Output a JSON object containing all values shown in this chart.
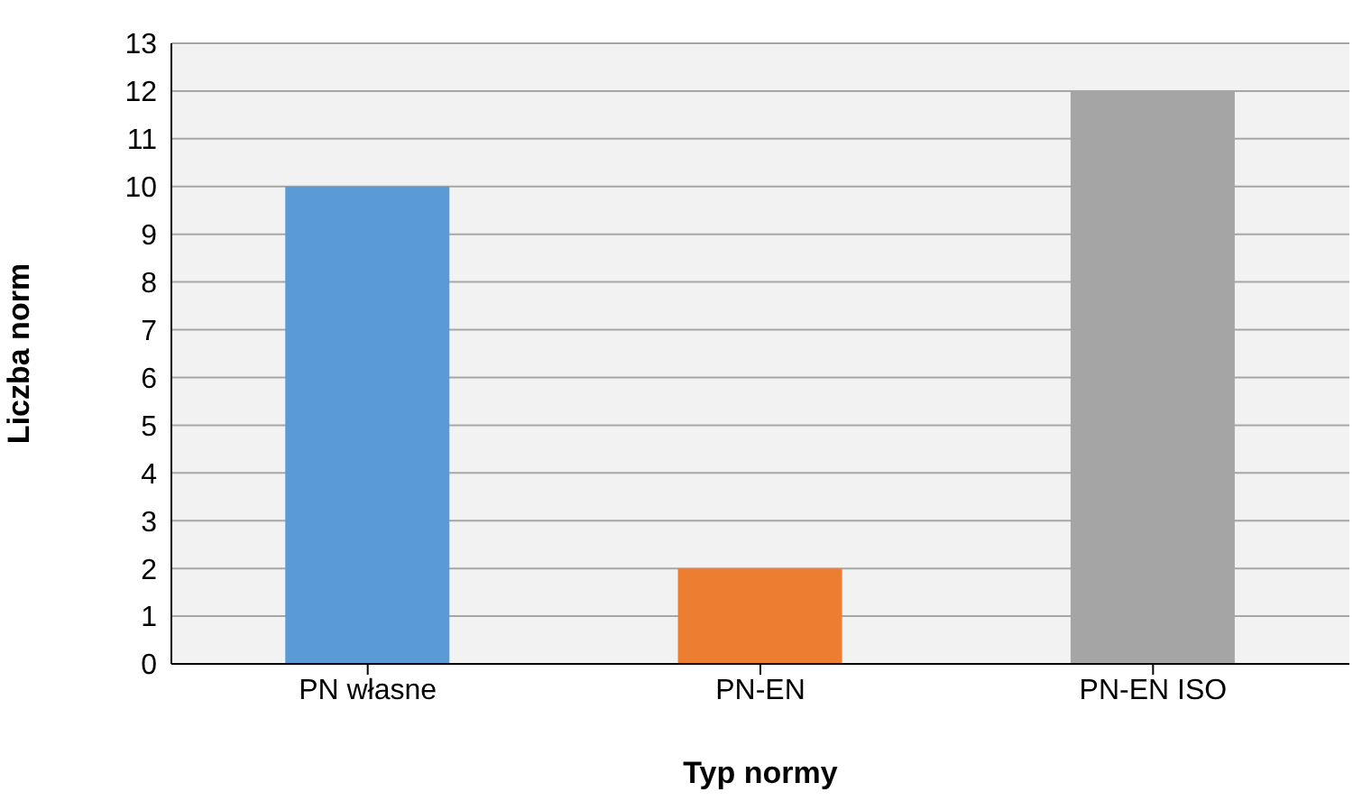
{
  "chart_data": {
    "type": "bar",
    "xlabel": "Typ normy",
    "ylabel": "Liczba norm",
    "categories": [
      "PN własne",
      "PN-EN",
      "PN-EN ISO"
    ],
    "values": [
      10,
      2,
      12
    ],
    "colors": [
      "#5b9bd5",
      "#ed7d31",
      "#a5a5a5"
    ],
    "ylim": [
      0,
      13
    ],
    "yticks": [
      0,
      1,
      2,
      3,
      4,
      5,
      6,
      7,
      8,
      9,
      10,
      11,
      12,
      13
    ],
    "grid": "y"
  }
}
